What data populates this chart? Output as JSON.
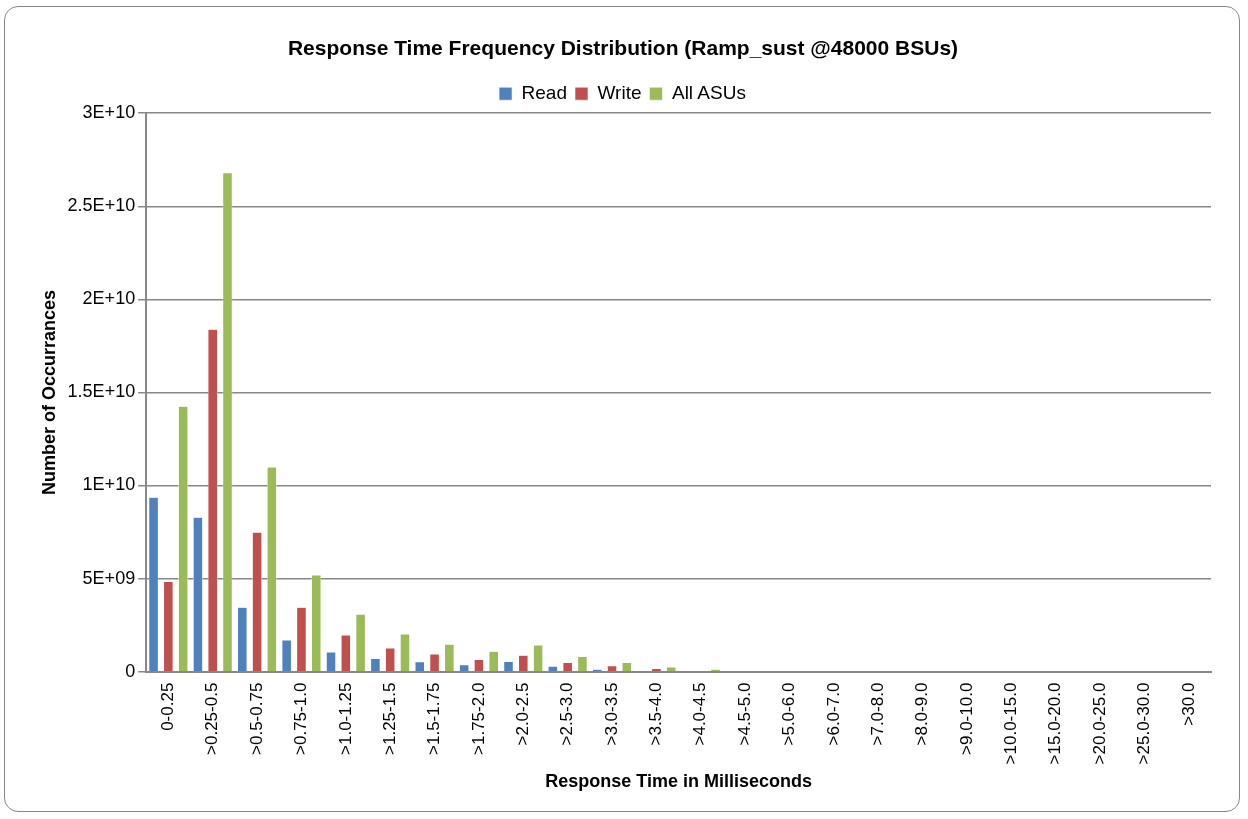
{
  "chart_data": {
    "type": "bar",
    "title": "Response Time Frequency Distribution (Ramp_sust @48000 BSUs)",
    "xlabel": "Response Time in Milliseconds",
    "ylabel": "Number of Occurrances",
    "categories": [
      "0-0.25",
      ">0.25-0.5",
      ">0.5-0.75",
      ">0.75-1.0",
      ">1.0-1.25",
      ">1.25-1.5",
      ">1.5-1.75",
      ">1.75-2.0",
      ">2.0-2.5",
      ">2.5-3.0",
      ">3.0-3.5",
      ">3.5-4.0",
      ">4.0-4.5",
      ">4.5-5.0",
      ">5.0-6.0",
      ">6.0-7.0",
      ">7.0-8.0",
      ">8.0-9.0",
      ">9.0-10.0",
      ">10.0-15.0",
      ">15.0-20.0",
      ">20.0-25.0",
      ">25.0-30.0",
      ">30.0"
    ],
    "series": [
      {
        "name": "Read",
        "color": "#4f81bd",
        "values": [
          9370000000,
          8300000000,
          3460000000,
          1700000000,
          1060000000,
          710000000,
          530000000,
          380000000,
          550000000,
          300000000,
          130000000,
          0,
          0,
          0,
          0,
          0,
          0,
          0,
          0,
          0,
          0,
          0,
          0,
          0
        ]
      },
      {
        "name": "Write",
        "color": "#c0504d",
        "values": [
          4850000000,
          18400000000,
          7500000000,
          3460000000,
          1980000000,
          1280000000,
          950000000,
          660000000,
          880000000,
          500000000,
          320000000,
          180000000,
          0,
          30000000,
          0,
          0,
          0,
          0,
          0,
          0,
          0,
          0,
          0,
          0
        ]
      },
      {
        "name": "All ASUs",
        "color": "#9bbb59",
        "values": [
          14260000000,
          26800000000,
          11000000000,
          5200000000,
          3090000000,
          2030000000,
          1470000000,
          1100000000,
          1430000000,
          820000000,
          500000000,
          260000000,
          130000000,
          40000000,
          30000000,
          0,
          0,
          0,
          0,
          0,
          0,
          0,
          0,
          0
        ]
      }
    ],
    "ylim": [
      0,
      30000000000
    ],
    "yticks": [
      {
        "value": 0,
        "label": "0"
      },
      {
        "value": 5000000000,
        "label": "5E+09"
      },
      {
        "value": 10000000000,
        "label": "1E+10"
      },
      {
        "value": 15000000000,
        "label": "1.5E+10"
      },
      {
        "value": 20000000000,
        "label": "2E+10"
      },
      {
        "value": 25000000000,
        "label": "2.5E+10"
      },
      {
        "value": 30000000000,
        "label": "3E+10"
      }
    ],
    "grid": "y",
    "legend": "top"
  }
}
